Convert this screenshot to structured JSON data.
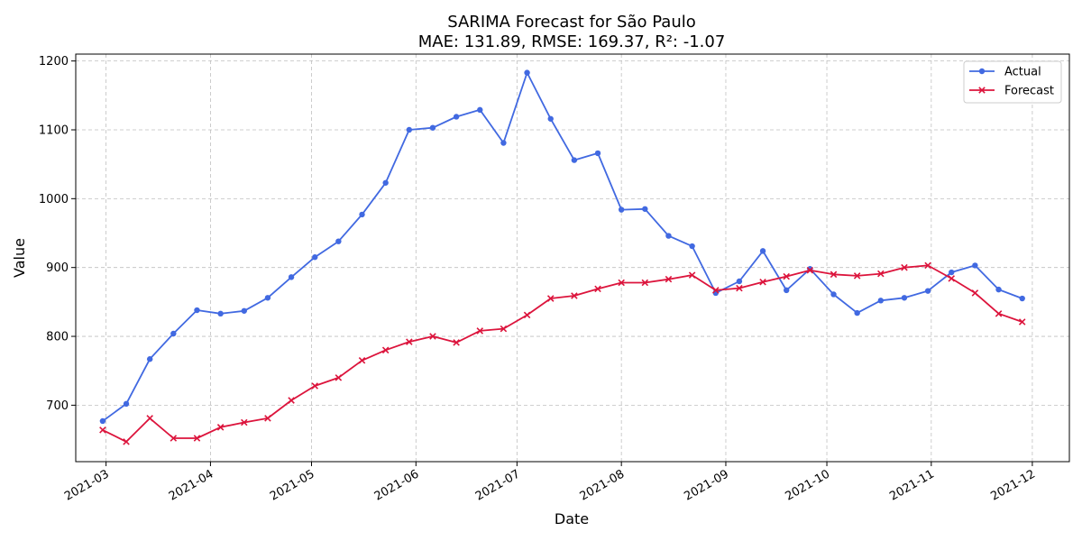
{
  "chart_data": {
    "type": "line",
    "title": "SARIMA Forecast for São Paulo",
    "subtitle": "MAE: 131.89, RMSE: 169.37, R²: -1.07",
    "xlabel": "Date",
    "ylabel": "Value",
    "ylim": [
      618,
      1210
    ],
    "xlim": [
      "2021-02-20",
      "2021-12-12"
    ],
    "y_ticks": [
      700,
      800,
      900,
      1000,
      1100,
      1200
    ],
    "x_ticks": [
      "2021-03-01",
      "2021-04-01",
      "2021-05-01",
      "2021-06-01",
      "2021-07-01",
      "2021-08-01",
      "2021-09-01",
      "2021-10-01",
      "2021-11-01",
      "2021-12-01"
    ],
    "x_tick_labels": [
      "2021-03",
      "2021-04",
      "2021-05",
      "2021-06",
      "2021-07",
      "2021-08",
      "2021-09",
      "2021-10",
      "2021-11",
      "2021-12"
    ],
    "grid": true,
    "legend_position": "top-right",
    "x": [
      "2021-02-28",
      "2021-03-07",
      "2021-03-14",
      "2021-03-21",
      "2021-03-28",
      "2021-04-04",
      "2021-04-11",
      "2021-04-18",
      "2021-04-25",
      "2021-05-02",
      "2021-05-09",
      "2021-05-16",
      "2021-05-23",
      "2021-05-30",
      "2021-06-06",
      "2021-06-13",
      "2021-06-20",
      "2021-06-27",
      "2021-07-04",
      "2021-07-11",
      "2021-07-18",
      "2021-07-25",
      "2021-08-01",
      "2021-08-08",
      "2021-08-15",
      "2021-08-22",
      "2021-08-29",
      "2021-09-05",
      "2021-09-12",
      "2021-09-19",
      "2021-09-26",
      "2021-10-03",
      "2021-10-10",
      "2021-10-17",
      "2021-10-24",
      "2021-10-31",
      "2021-11-07",
      "2021-11-14",
      "2021-11-21",
      "2021-11-28"
    ],
    "series": [
      {
        "name": "Actual",
        "color": "#4169e1",
        "marker": "circle",
        "values": [
          677,
          702,
          767,
          804,
          838,
          833,
          837,
          856,
          886,
          915,
          938,
          977,
          1023,
          1100,
          1103,
          1119,
          1129,
          1081,
          1183,
          1116,
          1056,
          1066,
          984,
          985,
          946,
          931,
          863,
          880,
          924,
          867,
          898,
          861,
          834,
          852,
          856,
          866,
          893,
          903,
          868,
          855
        ]
      },
      {
        "name": "Forecast",
        "color": "#dc143c",
        "marker": "x",
        "values": [
          664,
          647,
          681,
          652,
          652,
          668,
          675,
          681,
          707,
          728,
          740,
          765,
          780,
          792,
          800,
          791,
          808,
          811,
          831,
          855,
          859,
          869,
          878,
          878,
          883,
          889,
          867,
          870,
          879,
          887,
          896,
          890,
          888,
          891,
          900,
          903,
          884,
          863,
          833,
          821
        ]
      }
    ]
  }
}
